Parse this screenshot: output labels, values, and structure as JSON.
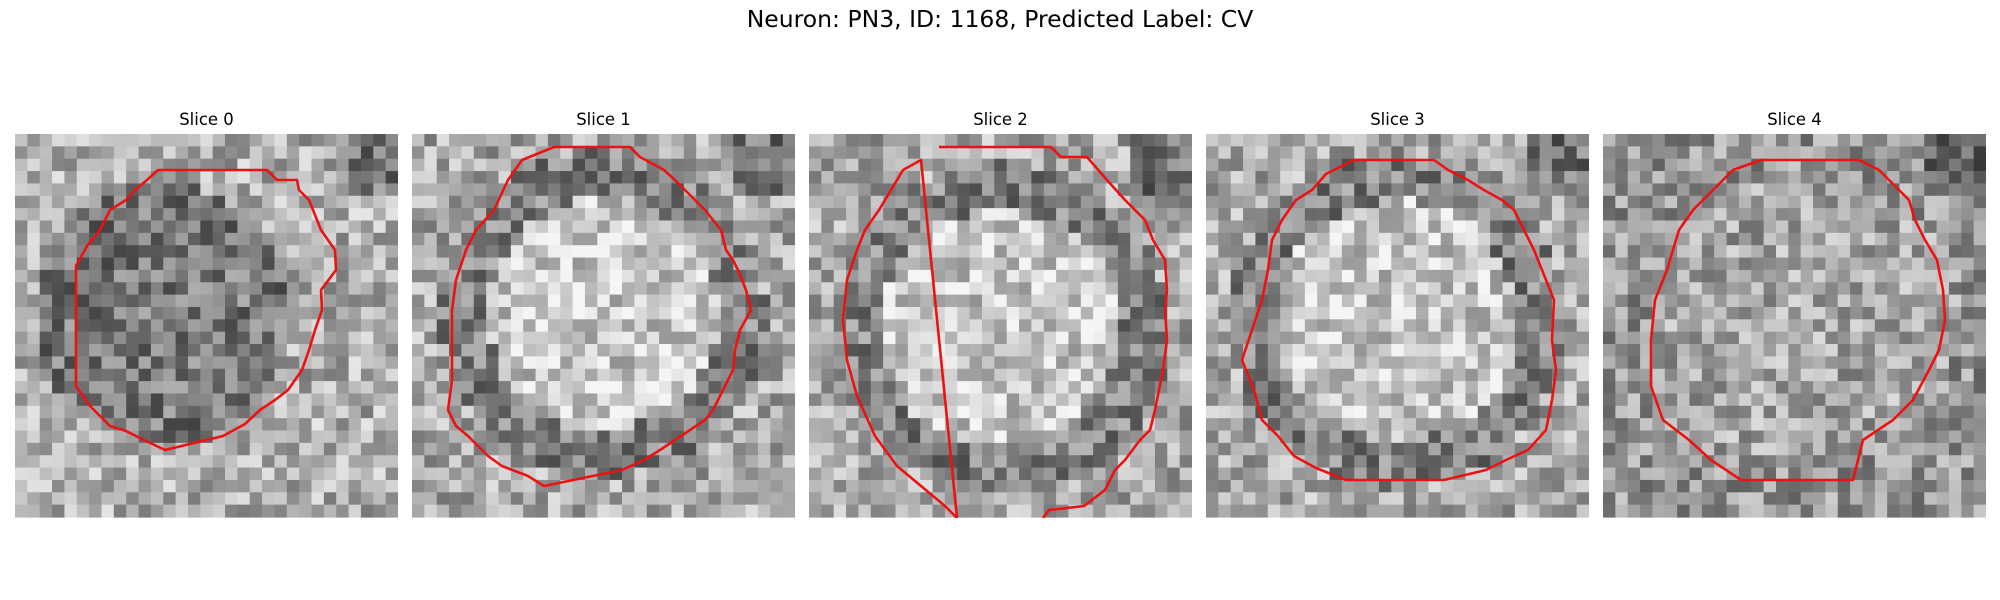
{
  "figure": {
    "title": "Neuron: PN3, ID: 1168, Predicted Label: CV"
  },
  "colors": {
    "contour": "#ee1111",
    "background": "#ffffff"
  },
  "panels": [
    {
      "title": "Slice 0",
      "tone": "dark-center"
    },
    {
      "title": "Slice 1",
      "tone": "bright-center"
    },
    {
      "title": "Slice 2",
      "tone": "bright-center"
    },
    {
      "title": "Slice 3",
      "tone": "bright-center"
    },
    {
      "title": "Slice 4",
      "tone": "mixed"
    }
  ]
}
